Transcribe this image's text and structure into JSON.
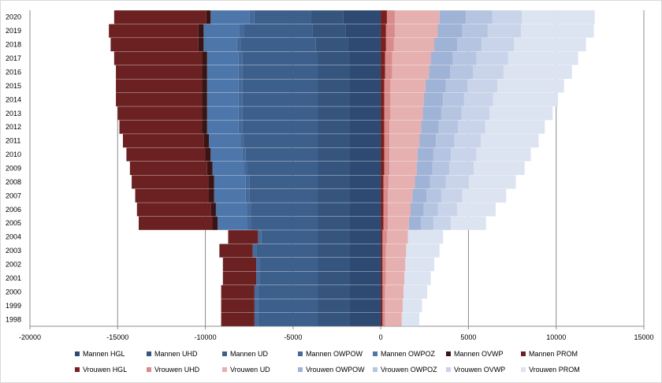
{
  "chart_data": {
    "type": "bar",
    "orientation": "horizontal",
    "stacked": true,
    "grid": "vertical major gridlines",
    "legend_position": "bottom",
    "categories": [
      "1998",
      "1999",
      "2000",
      "2001",
      "2002",
      "2003",
      "2004",
      "2005",
      "2006",
      "2007",
      "2008",
      "2009",
      "2010",
      "2011",
      "2012",
      "2013",
      "2014",
      "2015",
      "2016",
      "2017",
      "2018",
      "2019",
      "2020"
    ],
    "xlim": [
      -20000,
      15000
    ],
    "xticks": [
      "-20000",
      "-15000",
      "-10000",
      "-5000",
      "0",
      "5000",
      "10000",
      "15000"
    ],
    "series": [
      {
        "name": "Mannen HGL",
        "color": "#2e4a73",
        "values": [
          -1800,
          -1800,
          -1800,
          -1800,
          -1800,
          -1800,
          -1800,
          -1800,
          -1800,
          -1800,
          -1800,
          -1800,
          -1800,
          -1800,
          -1800,
          -1800,
          -1800,
          -1800,
          -1800,
          -1800,
          -1850,
          -2000,
          -2150
        ]
      },
      {
        "name": "Mannen UHD",
        "color": "#35557f",
        "values": [
          -1800,
          -1800,
          -1800,
          -1800,
          -1800,
          -1800,
          -1800,
          -1800,
          -1800,
          -1800,
          -1800,
          -1800,
          -1800,
          -1800,
          -1800,
          -1800,
          -1800,
          -1800,
          -1800,
          -1800,
          -1850,
          -1900,
          -1850
        ]
      },
      {
        "name": "Mannen UD",
        "color": "#3d5f8c",
        "values": [
          -3400,
          -3400,
          -3400,
          -3300,
          -3300,
          -3500,
          -3200,
          -3800,
          -3800,
          -3900,
          -3900,
          -4000,
          -4100,
          -4200,
          -4300,
          -4300,
          -4300,
          -4300,
          -4300,
          -4300,
          -4300,
          -3900,
          -3200
        ]
      },
      {
        "name": "Mannen OWPOW",
        "color": "#456a9a",
        "values": [
          -200,
          -200,
          -200,
          -200,
          -200,
          -200,
          -200,
          -200,
          -200,
          -200,
          -200,
          -200,
          -200,
          -200,
          -200,
          -200,
          -200,
          -200,
          -200,
          -200,
          -200,
          -250,
          -300
        ]
      },
      {
        "name": "Mannen OWPOZ",
        "color": "#4d76aa",
        "values": [
          0,
          0,
          0,
          0,
          0,
          0,
          0,
          -1700,
          -1800,
          -1800,
          -1800,
          -1800,
          -1800,
          -1800,
          -1800,
          -1800,
          -1800,
          -1800,
          -1800,
          -1800,
          -1900,
          -2050,
          -2200
        ]
      },
      {
        "name": "Mannen OVWP",
        "color": "#3a1414",
        "values": [
          0,
          0,
          0,
          0,
          0,
          0,
          0,
          -300,
          -300,
          -300,
          -300,
          -300,
          -300,
          -300,
          -300,
          -300,
          -300,
          -300,
          -300,
          -300,
          -300,
          -300,
          -250
        ]
      },
      {
        "name": "Mannen PROM",
        "color": "#6b2121",
        "values": [
          -1900,
          -1900,
          -1900,
          -1900,
          -1900,
          -1900,
          -1700,
          -4200,
          -4200,
          -4200,
          -4400,
          -4400,
          -4500,
          -4600,
          -4700,
          -4800,
          -4900,
          -4900,
          -4900,
          -5000,
          -5000,
          -5100,
          -5250
        ]
      },
      {
        "name": "Vrouwen HGL",
        "color": "#7a1f1f",
        "values": [
          100,
          100,
          100,
          100,
          100,
          100,
          100,
          150,
          150,
          150,
          150,
          200,
          200,
          200,
          200,
          200,
          200,
          200,
          250,
          250,
          300,
          300,
          350
        ]
      },
      {
        "name": "Vrouwen UHD",
        "color": "#d98a8a",
        "values": [
          150,
          150,
          150,
          200,
          200,
          200,
          250,
          250,
          250,
          250,
          300,
          300,
          300,
          300,
          300,
          350,
          350,
          350,
          400,
          400,
          450,
          500,
          450
        ]
      },
      {
        "name": "Vrouwen UD",
        "color": "#e6b0b0",
        "values": [
          950,
          1000,
          1050,
          1050,
          1100,
          1150,
          1200,
          1200,
          1300,
          1400,
          1500,
          1550,
          1600,
          1700,
          1800,
          1850,
          1900,
          2000,
          2100,
          2200,
          2300,
          2450,
          2550
        ]
      },
      {
        "name": "Vrouwen OWPOW",
        "color": "#9fb3d6",
        "values": [
          0,
          0,
          0,
          0,
          0,
          0,
          0,
          700,
          750,
          800,
          850,
          900,
          900,
          950,
          1000,
          1050,
          1100,
          1150,
          1200,
          1250,
          1300,
          1400,
          1500
        ]
      },
      {
        "name": "Vrouwen OWPOZ",
        "color": "#b4c4e1",
        "values": [
          0,
          0,
          0,
          0,
          0,
          0,
          0,
          700,
          800,
          850,
          900,
          950,
          1000,
          1050,
          1100,
          1150,
          1200,
          1250,
          1300,
          1350,
          1400,
          1450,
          1500
        ]
      },
      {
        "name": "Vrouwen OVWP",
        "color": "#c9d4ea",
        "values": [
          0,
          0,
          0,
          0,
          0,
          0,
          0,
          1000,
          1100,
          1200,
          1300,
          1400,
          1450,
          1500,
          1550,
          1600,
          1650,
          1700,
          1750,
          1800,
          1850,
          1900,
          1700
        ]
      },
      {
        "name": "Vrouwen PROM",
        "color": "#dce3f1",
        "values": [
          1000,
          1100,
          1350,
          1500,
          1650,
          1900,
          2000,
          2000,
          2200,
          2500,
          2700,
          2900,
          3100,
          3300,
          3400,
          3600,
          3700,
          3800,
          3900,
          4000,
          4100,
          4150,
          4150
        ]
      }
    ]
  }
}
